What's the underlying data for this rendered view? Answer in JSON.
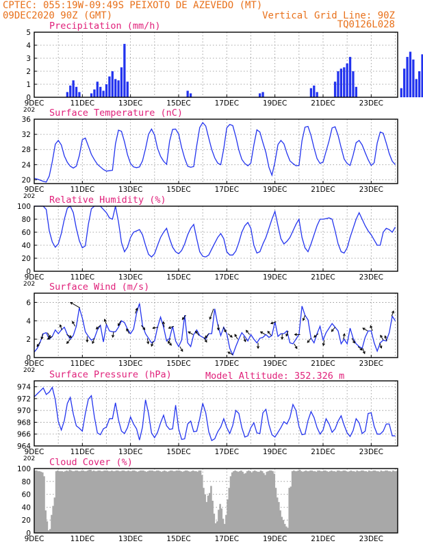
{
  "header": {
    "left_line1": "CPTEC:   055:19W-09:49S  PEIXOTO DE AZEVEDO (MT)",
    "left_line2": "09DEC2020 90Z (GMT)",
    "right_line2": "Vertical Grid Line: 90Z",
    "right_line3": "TQ0126L028",
    "model_altitude": "Model Altitude: 352.326 m"
  },
  "colors": {
    "header": "#e8701a",
    "title": "#e0207a",
    "series": "#2233ee",
    "cloud": "#a8a8a8",
    "wind_arrow": "#000000"
  },
  "x_ticks": [
    "9DEC",
    "11DEC",
    "13DEC",
    "15DEC",
    "17DEC",
    "19DEC",
    "21DEC",
    "23DEC"
  ],
  "x_tick_cut": "202",
  "chart_data": [
    {
      "id": "precip",
      "type": "bar",
      "title": "Precipitation (mm/h)",
      "ylim": [
        0,
        5
      ],
      "yticks": [
        0,
        1,
        2,
        3,
        4,
        5
      ],
      "x_start_day": 9,
      "hours_per_point": 3,
      "values": [
        0,
        0,
        0,
        0,
        0,
        0,
        0,
        0,
        0,
        0,
        0,
        0.4,
        0.9,
        1.3,
        0.8,
        0.4,
        0,
        0,
        0,
        0.3,
        0.6,
        1.2,
        0.8,
        0.5,
        1.0,
        1.6,
        2.0,
        1.4,
        1.3,
        2.3,
        4.1,
        1.2,
        0,
        0,
        0,
        0,
        0,
        0,
        0,
        0,
        0,
        0,
        0,
        0,
        0,
        0,
        0,
        0,
        0,
        0,
        0,
        0.5,
        0.3,
        0,
        0,
        0,
        0,
        0,
        0,
        0,
        0,
        0,
        0,
        0,
        0,
        0,
        0,
        0,
        0,
        0,
        0,
        0,
        0,
        0,
        0,
        0.3,
        0.4,
        0,
        0,
        0,
        0,
        0,
        0,
        0,
        0,
        0,
        0,
        0,
        0,
        0,
        0,
        0,
        0.7,
        0.9,
        0.4,
        0,
        0,
        0,
        0,
        0,
        1.2,
        2.0,
        2.2,
        2.3,
        2.6,
        3.1,
        2.0,
        0.8,
        0,
        0,
        0,
        0,
        0,
        0,
        0,
        0,
        0,
        0,
        0,
        0,
        0,
        0,
        0.7,
        2.2,
        3.1,
        3.5,
        2.9,
        1.4,
        2.0,
        3.3,
        2.4,
        0,
        0,
        0,
        0,
        0,
        0,
        0,
        0,
        0,
        0,
        0,
        0,
        0,
        0.3,
        2.4,
        1.8,
        0.5,
        0,
        0,
        0,
        0,
        0,
        0,
        0,
        0,
        0,
        0,
        0,
        0,
        0,
        0,
        0,
        2.2,
        0,
        0,
        0,
        0,
        0,
        0,
        0,
        0.2,
        0.4,
        0.2,
        0,
        0,
        0,
        0,
        0,
        0,
        0,
        0,
        0,
        0,
        0,
        0,
        0,
        0,
        0.3,
        0.7,
        0
      ]
    },
    {
      "id": "temperature",
      "type": "line",
      "title": "Surface Temperature (nC)",
      "ylim": [
        19,
        36
      ],
      "yticks": [
        20,
        24,
        28,
        32,
        36
      ],
      "x_start_day": 9,
      "hours_per_point": 3,
      "values": [
        20.4,
        20.2,
        19.9,
        19.6,
        19.4,
        21.0,
        24.8,
        29.4,
        30.4,
        29.2,
        26.3,
        24.6,
        23.6,
        23.1,
        23.6,
        26.4,
        30.6,
        31.0,
        28.9,
        26.7,
        25.3,
        24.1,
        23.4,
        22.7,
        22.3,
        22.4,
        22.5,
        29.5,
        33.1,
        32.8,
        30.0,
        26.6,
        24.3,
        23.4,
        23.2,
        23.4,
        25.0,
        28.2,
        32.0,
        33.4,
        31.8,
        28.3,
        26.2,
        24.9,
        24.1,
        30.2,
        33.3,
        33.4,
        32.1,
        28.5,
        25.7,
        23.6,
        23.3,
        23.5,
        29.0,
        33.8,
        35.1,
        34.2,
        31.0,
        28.0,
        25.8,
        24.4,
        24.0,
        28.2,
        33.7,
        34.6,
        34.3,
        31.4,
        27.9,
        25.4,
        24.3,
        23.7,
        24.4,
        29.2,
        33.2,
        32.6,
        29.8,
        27.2,
        23.3,
        21.2,
        24.7,
        29.3,
        30.4,
        29.5,
        27.0,
        25.0,
        24.3,
        23.7,
        23.8,
        30.3,
        33.9,
        34.1,
        31.7,
        28.4,
        25.6,
        24.3,
        24.7,
        27.5,
        30.3,
        33.7,
        34.0,
        31.7,
        28.5,
        25.5,
        24.3,
        23.8,
        26.5,
        29.8,
        30.4,
        29.2,
        27.2,
        25.3,
        23.8,
        24.5,
        29.7,
        32.6,
        32.3,
        29.7,
        26.9,
        24.9,
        24.0,
        29.7,
        29.4,
        27.2,
        25.3,
        23.8,
        23.3,
        23.1,
        23.8,
        29.2,
        33.9,
        34.4,
        32.6,
        30.1,
        27.4,
        24.8,
        23.5,
        23.2,
        28.3,
        31.7,
        30.8,
        29.5,
        27.6,
        26.3,
        25.6,
        25.9,
        30.6,
        32.6,
        31.2,
        28.3
      ]
    },
    {
      "id": "humidity",
      "type": "line",
      "title": "Relative Humidity (%)",
      "ylim": [
        0,
        100
      ],
      "yticks": [
        0,
        20,
        40,
        60,
        80,
        100
      ],
      "x_start_day": 9,
      "hours_per_point": 3,
      "values": [
        100,
        100,
        100,
        100,
        95,
        62,
        45,
        37,
        42,
        58,
        80,
        97,
        100,
        90,
        66,
        47,
        36,
        39,
        72,
        96,
        100,
        100,
        100,
        95,
        90,
        82,
        80,
        100,
        76,
        44,
        30,
        37,
        52,
        60,
        62,
        64,
        56,
        40,
        26,
        22,
        27,
        40,
        52,
        60,
        66,
        50,
        37,
        30,
        27,
        32,
        42,
        56,
        66,
        72,
        50,
        30,
        23,
        22,
        25,
        34,
        43,
        52,
        58,
        50,
        30,
        25,
        25,
        31,
        44,
        60,
        70,
        75,
        66,
        40,
        28,
        30,
        42,
        52,
        66,
        80,
        92,
        70,
        50,
        42,
        46,
        52,
        62,
        72,
        80,
        52,
        36,
        30,
        42,
        56,
        70,
        80,
        80,
        81,
        82,
        80,
        62,
        42,
        30,
        28,
        36,
        52,
        66,
        80,
        90,
        80,
        70,
        62,
        56,
        48,
        40,
        40,
        60,
        66,
        64,
        60,
        68,
        72,
        66,
        90,
        65,
        52,
        64,
        74,
        82,
        86,
        80,
        55,
        30,
        26,
        38,
        50,
        66,
        80,
        92,
        76,
        60,
        50,
        54,
        64,
        74,
        90,
        100,
        100,
        72,
        42,
        37,
        40,
        58
      ]
    },
    {
      "id": "wind",
      "type": "line",
      "title": "Surface Wind (m/s)",
      "ylim": [
        0,
        7
      ],
      "yticks": [
        0,
        2,
        4,
        6
      ],
      "x_start_day": 9,
      "hours_per_point": 3,
      "values": [
        0.6,
        1.0,
        1.7,
        2.6,
        2.7,
        2.0,
        2.3,
        3.0,
        2.6,
        3.0,
        3.3,
        2.5,
        2.0,
        2.4,
        3.4,
        5.4,
        4.3,
        2.8,
        2.3,
        1.9,
        2.1,
        3.0,
        3.5,
        1.7,
        3.6,
        2.9,
        2.8,
        2.8,
        3.3,
        4.0,
        3.8,
        3.1,
        2.6,
        3.1,
        4.8,
        5.9,
        3.5,
        2.6,
        2.1,
        1.6,
        1.8,
        3.3,
        4.4,
        3.3,
        1.8,
        2.1,
        3.4,
        1.8,
        1.2,
        1.9,
        4.6,
        1.6,
        1.2,
        2.5,
        3.0,
        2.4,
        2.2,
        2.0,
        2.6,
        2.6,
        5.3,
        3.6,
        2.4,
        3.3,
        2.6,
        1.0,
        0.3,
        1.2,
        2.0,
        2.7,
        2.3,
        1.8,
        2.5,
        2.0,
        1.6,
        2.1,
        2.2,
        2.5,
        2.2,
        2.4,
        3.9,
        2.3,
        2.6,
        2.6,
        2.9,
        1.6,
        1.5,
        2.0,
        2.5,
        5.6,
        4.6,
        4.1,
        2.1,
        1.6,
        2.6,
        3.4,
        1.9,
        2.7,
        3.2,
        3.7,
        3.3,
        2.9,
        1.5,
        2.0,
        1.5,
        3.2,
        2.1,
        1.5,
        1.2,
        1.0,
        2.2,
        2.9,
        2.9,
        1.6,
        0.7,
        1.6,
        1.9,
        1.8,
        2.7,
        4.5,
        4.0,
        2.6,
        3.0,
        4.3,
        1.7,
        0.7,
        0.6,
        1.1,
        2.3,
        3.0,
        3.7,
        4.0,
        4.1,
        3.3,
        6.7,
        4.4,
        4.1,
        4.3,
        4.4,
        4.0,
        4.1,
        4.3,
        4.1,
        3.3,
        2.1,
        2.6,
        2.8,
        5.0,
        3.8,
        2.0
      ],
      "arrows": [
        [
          0.25,
          215
        ],
        [
          0.35,
          190
        ],
        [
          0.55,
          150
        ],
        [
          0.75,
          240
        ],
        [
          1.15,
          340
        ],
        [
          1.35,
          120
        ],
        [
          1.5,
          220
        ],
        [
          1.7,
          330
        ],
        [
          1.9,
          300
        ],
        [
          2.2,
          180
        ],
        [
          2.5,
          200
        ],
        [
          2.75,
          230
        ],
        [
          3.0,
          340
        ],
        [
          3.3,
          190
        ],
        [
          3.6,
          210
        ],
        [
          3.95,
          330
        ],
        [
          4.2,
          20
        ],
        [
          4.45,
          140
        ],
        [
          4.7,
          170
        ],
        [
          4.95,
          200
        ],
        [
          5.15,
          260
        ],
        [
          5.4,
          350
        ],
        [
          5.55,
          140
        ],
        [
          5.65,
          200
        ],
        [
          5.8,
          250
        ],
        [
          6.05,
          150
        ],
        [
          6.3,
          220
        ],
        [
          6.6,
          300
        ],
        [
          6.85,
          320
        ],
        [
          7.05,
          150
        ],
        [
          7.25,
          220
        ],
        [
          7.45,
          200
        ],
        [
          7.65,
          180
        ],
        [
          7.85,
          150
        ],
        [
          8.05,
          130
        ],
        [
          8.25,
          300
        ],
        [
          8.45,
          330
        ],
        [
          8.7,
          160
        ],
        [
          8.95,
          320
        ],
        [
          9.3,
          180
        ],
        [
          9.6,
          300
        ],
        [
          9.85,
          320
        ],
        [
          10.05,
          250
        ],
        [
          10.3,
          180
        ],
        [
          10.55,
          200
        ],
        [
          10.8,
          150
        ],
        [
          11.05,
          270
        ],
        [
          11.25,
          200
        ],
        [
          11.5,
          220
        ],
        [
          11.8,
          230
        ],
        [
          12.05,
          190
        ],
        [
          12.5,
          220
        ],
        [
          12.85,
          10
        ],
        [
          13.2,
          150
        ],
        [
          13.45,
          130
        ],
        [
          13.65,
          160
        ],
        [
          13.85,
          300
        ],
        [
          14.05,
          340
        ],
        [
          14.35,
          160
        ],
        [
          14.5,
          330
        ],
        [
          14.65,
          340
        ],
        [
          14.85,
          20
        ]
      ]
    },
    {
      "id": "pressure",
      "type": "line",
      "title": "Surface Pressure (hPa)",
      "ylim": [
        964,
        975
      ],
      "yticks": [
        964,
        966,
        968,
        970,
        972,
        974
      ],
      "x_start_day": 9,
      "hours_per_point": 3,
      "values": [
        972.3,
        972.8,
        973.3,
        973.8,
        972.7,
        973.1,
        973.9,
        971.8,
        968.1,
        966.7,
        968.3,
        971.2,
        972.2,
        969.4,
        967.4,
        967.0,
        966.5,
        969.5,
        971.9,
        972.5,
        968.9,
        966.2,
        965.9,
        966.9,
        967.2,
        968.6,
        968.6,
        971.3,
        968.4,
        966.5,
        966.1,
        967.1,
        968.9,
        967.7,
        966.9,
        965.0,
        967.2,
        971.8,
        969.5,
        966.2,
        965.4,
        966.3,
        967.9,
        969.2,
        967.4,
        966.8,
        966.9,
        970.9,
        966.9,
        965.1,
        965.2,
        967.7,
        968.2,
        966.4,
        966.5,
        968.6,
        971.2,
        969.6,
        966.4,
        964.9,
        965.2,
        966.4,
        967.2,
        968.6,
        967.1,
        966.1,
        967.5,
        970.0,
        969.5,
        967.1,
        965.5,
        965.7,
        967.1,
        967.9,
        966.2,
        966.1,
        969.6,
        970.2,
        967.6,
        965.9,
        965.5,
        966.3,
        967.1,
        968.1,
        967.7,
        968.8,
        971.0,
        970.0,
        967.3,
        965.9,
        966.0,
        968.3,
        969.8,
        968.8,
        967.1,
        966.0,
        966.7,
        968.6,
        967.7,
        966.3,
        966.9,
        968.2,
        969.1,
        967.5,
        966.2,
        965.6,
        966.6,
        968.6,
        967.9,
        966.1,
        966.5,
        969.5,
        969.6,
        967.3,
        966.0,
        966.0,
        966.5,
        967.7,
        967.7,
        965.7,
        965.7,
        969.7,
        970.1,
        966.4,
        964.9,
        966.2,
        966.6,
        967.3,
        968.5,
        967.2,
        966.3,
        966.6,
        969.1,
        968.6,
        965.9,
        964.1,
        965.5,
        967.3,
        968.3,
        967.7,
        966.4,
        966.6,
        967.5,
        968.9,
        967.5,
        965.6,
        965.3,
        967.1,
        968.4,
        967.9,
        965.8,
        965.2
      ]
    },
    {
      "id": "cloud",
      "type": "area",
      "title": "Cloud Cover (%)",
      "ylim": [
        0,
        100
      ],
      "yticks": [
        0,
        20,
        40,
        60,
        80,
        100
      ],
      "x_start_day": 9,
      "hours_per_point": 1.5,
      "values": [
        97,
        97,
        96,
        96,
        95,
        94,
        88,
        35,
        18,
        4,
        6,
        28,
        42,
        55,
        96,
        97,
        96,
        96,
        96,
        95,
        96,
        97,
        96,
        98,
        97,
        96,
        96,
        97,
        97,
        96,
        96,
        97,
        97,
        96,
        96,
        97,
        98,
        98,
        96,
        97,
        96,
        96,
        97,
        97,
        96,
        96,
        97,
        97,
        97,
        96,
        96,
        97,
        96,
        96,
        97,
        97,
        96,
        96,
        97,
        97,
        96,
        96,
        97,
        96,
        96,
        97,
        97,
        96,
        95,
        96,
        97,
        97,
        97,
        96,
        95,
        96,
        97,
        97,
        97,
        96,
        96,
        97,
        97,
        96,
        95,
        96,
        97,
        96,
        95,
        96,
        97,
        97,
        96,
        96,
        97,
        97,
        97,
        96,
        95,
        96,
        97,
        97,
        96,
        95,
        96,
        97,
        96,
        96,
        95,
        97,
        97,
        90,
        70,
        60,
        48,
        58,
        62,
        73,
        50,
        30,
        15,
        18,
        36,
        45,
        38,
        22,
        14,
        28,
        52,
        70,
        88,
        94,
        96,
        97,
        96,
        95,
        96,
        97,
        95,
        92,
        93,
        96,
        97,
        96,
        94,
        96,
        97,
        96,
        95,
        95,
        97,
        96,
        93,
        90,
        95,
        96,
        97,
        97,
        96,
        92,
        70,
        55,
        48,
        35,
        25,
        20,
        14,
        10,
        8,
        70,
        72,
        96,
        97,
        96,
        96,
        97,
        98,
        96,
        95,
        96,
        97,
        96,
        96,
        97,
        97,
        96,
        96,
        95,
        97,
        97,
        96,
        96,
        97,
        97,
        96,
        95,
        96,
        97,
        96,
        96,
        95,
        97,
        97,
        96,
        96,
        97,
        97,
        96,
        95,
        96,
        97,
        96,
        96,
        95,
        97,
        96,
        96,
        97,
        97,
        96,
        96,
        95,
        97,
        96,
        96,
        97,
        97,
        96,
        96,
        95,
        97,
        96,
        96,
        97,
        97,
        96,
        96,
        95,
        97,
        96,
        96,
        97,
        97,
        96,
        96,
        95,
        97,
        96,
        96,
        97,
        97,
        96,
        96,
        95,
        97,
        96,
        96,
        97,
        97,
        96,
        96,
        95,
        97,
        96,
        96,
        97,
        97,
        96,
        96,
        95,
        97,
        96,
        96,
        97,
        97,
        96,
        96,
        95,
        97,
        96,
        96,
        97,
        97,
        96,
        96,
        95,
        97,
        96,
        96,
        97,
        97,
        96,
        96,
        95,
        97,
        96,
        96,
        97,
        97,
        96,
        96,
        95,
        97,
        96,
        96,
        97,
        97,
        96,
        96,
        95,
        97,
        96,
        96,
        97,
        97,
        96,
        96,
        95,
        97,
        96,
        96,
        97,
        97,
        96,
        96,
        95,
        97,
        96,
        96
      ]
    }
  ]
}
